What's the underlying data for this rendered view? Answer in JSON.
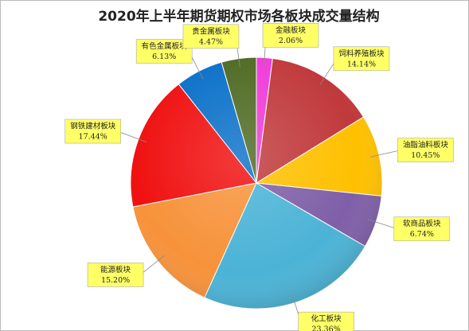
{
  "chart_data": {
    "type": "pie",
    "title": "2020年上半年期货期权市场各板块成交量结构",
    "categories": [
      "金融板块",
      "饲料养殖板块",
      "油脂油料板块",
      "软商品板块",
      "化工板块",
      "能源板块",
      "钢铁建材板块",
      "有色金属板块",
      "贵金属板块"
    ],
    "values": [
      2.06,
      14.14,
      10.45,
      6.74,
      23.36,
      15.2,
      17.44,
      6.13,
      4.47
    ],
    "value_labels": [
      "2.06%",
      "14.14%",
      "10.45%",
      "6.74%",
      "23.36%",
      "15.20%",
      "17.44%",
      "6.13%",
      "4.47%"
    ],
    "colors": [
      "#f03ad8",
      "#c0393b",
      "#ffc000",
      "#7f5fa8",
      "#4bb3d6",
      "#f7923a",
      "#f01010",
      "#0a70c8",
      "#4e6a22"
    ]
  }
}
